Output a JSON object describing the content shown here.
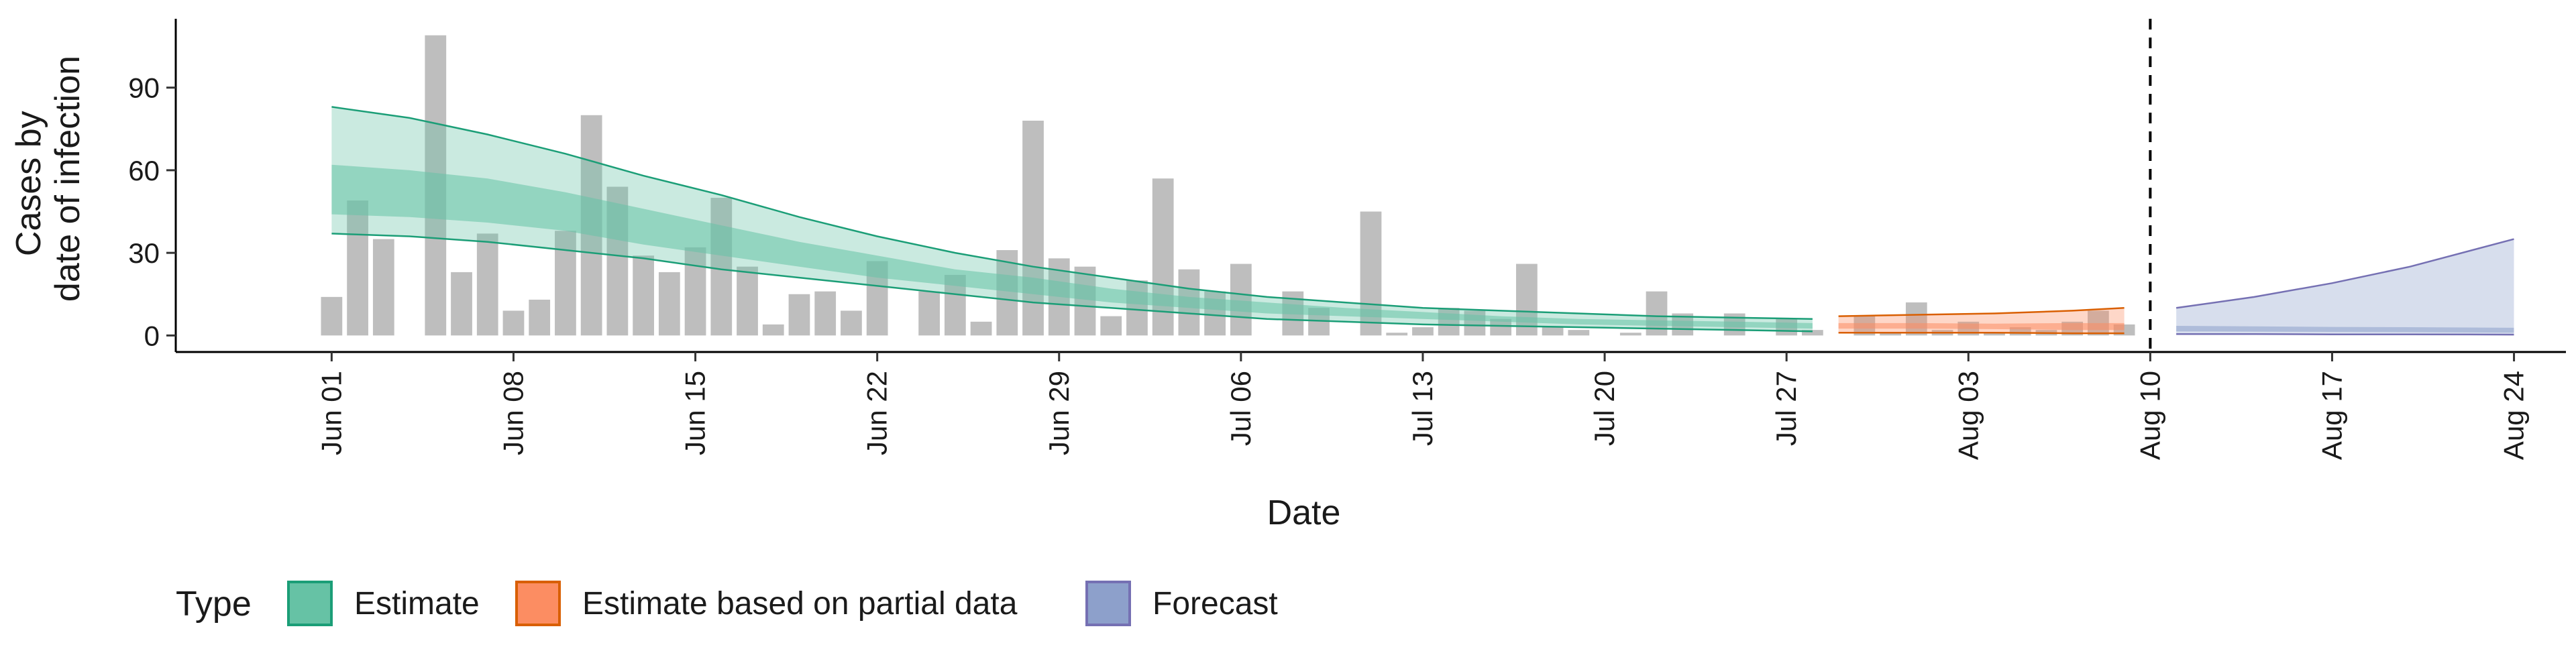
{
  "chart_data": {
    "type": "bar",
    "title": "",
    "xlabel": "Date",
    "ylabel": [
      "Cases by",
      "date of infection"
    ],
    "ylim": [
      -6,
      115
    ],
    "y_ticks": [
      0,
      30,
      60,
      90
    ],
    "x_ticks": [
      {
        "date": "2020-06-01",
        "label": "Jun 01"
      },
      {
        "date": "2020-06-08",
        "label": "Jun 08"
      },
      {
        "date": "2020-06-15",
        "label": "Jun 15"
      },
      {
        "date": "2020-06-22",
        "label": "Jun 22"
      },
      {
        "date": "2020-06-29",
        "label": "Jun 29"
      },
      {
        "date": "2020-07-06",
        "label": "Jul 06"
      },
      {
        "date": "2020-07-13",
        "label": "Jul 13"
      },
      {
        "date": "2020-07-20",
        "label": "Jul 20"
      },
      {
        "date": "2020-07-27",
        "label": "Jul 27"
      },
      {
        "date": "2020-08-03",
        "label": "Aug 03"
      },
      {
        "date": "2020-08-10",
        "label": "Aug 10"
      },
      {
        "date": "2020-08-17",
        "label": "Aug 17"
      },
      {
        "date": "2020-08-24",
        "label": "Aug 24"
      }
    ],
    "x_range": [
      "2020-05-26",
      "2020-08-26"
    ],
    "vline_date": "2020-08-10",
    "grid": false,
    "legend_position": "bottom-left",
    "observed_start": "2020-06-01",
    "observed_cases": [
      14,
      49,
      35,
      0,
      109,
      23,
      37,
      9,
      13,
      38,
      80,
      54,
      29,
      23,
      32,
      50,
      25,
      4,
      15,
      16,
      9,
      27,
      0,
      16,
      22,
      5,
      31,
      78,
      28,
      25,
      7,
      20,
      57,
      24,
      16,
      26,
      0,
      16,
      10,
      0,
      45,
      1,
      3,
      10,
      9,
      6,
      26,
      3,
      2,
      0,
      1,
      16,
      8,
      0,
      8,
      0,
      6,
      2,
      0,
      7,
      1,
      12,
      2,
      5,
      1,
      3,
      2,
      5,
      9,
      4
    ],
    "bar_color": "#bebebe",
    "series": [
      {
        "name": "Estimate",
        "color": "#1b9e77",
        "fill": "#66c2a5",
        "x": [
          "2020-06-01",
          "2020-06-04",
          "2020-06-07",
          "2020-06-10",
          "2020-06-13",
          "2020-06-16",
          "2020-06-19",
          "2020-06-22",
          "2020-06-25",
          "2020-06-28",
          "2020-07-01",
          "2020-07-04",
          "2020-07-07",
          "2020-07-10",
          "2020-07-13",
          "2020-07-16",
          "2020-07-19",
          "2020-07-22",
          "2020-07-25",
          "2020-07-28"
        ],
        "median": [
          52,
          50,
          48,
          44,
          39,
          34,
          29,
          25,
          21,
          18,
          15,
          12,
          10,
          8.5,
          7,
          6,
          5,
          4.5,
          4,
          3.5
        ],
        "lower_50": [
          44,
          43,
          41,
          38,
          33,
          29,
          25,
          21,
          18,
          15,
          12,
          10,
          8,
          7,
          6,
          5,
          4,
          3.5,
          3,
          2.5
        ],
        "upper_50": [
          62,
          60,
          57,
          52,
          46,
          40,
          34,
          29,
          24,
          21,
          17,
          14,
          12,
          10,
          8.5,
          7,
          6,
          5.5,
          5,
          4.5
        ],
        "lower_90": [
          37,
          36,
          34,
          31,
          28,
          24,
          21,
          18,
          15,
          12,
          10,
          8,
          6,
          5,
          4,
          3.5,
          3,
          2.5,
          2,
          1.5
        ],
        "upper_90": [
          83,
          79,
          73,
          66,
          58,
          51,
          43,
          36,
          30,
          25,
          21,
          17,
          14,
          12,
          10,
          9,
          8,
          7,
          6.5,
          6
        ]
      },
      {
        "name": "Estimate based on partial data",
        "color": "#d95f02",
        "fill": "#fc8d62",
        "x": [
          "2020-07-29",
          "2020-08-01",
          "2020-08-04",
          "2020-08-07",
          "2020-08-09"
        ],
        "median": [
          3.5,
          3.5,
          3.2,
          3,
          3
        ],
        "lower_50": [
          2.5,
          2.5,
          2.3,
          2,
          2
        ],
        "upper_50": [
          4.5,
          4.5,
          4.3,
          4.5,
          4.5
        ],
        "lower_90": [
          1,
          1,
          1,
          0.8,
          0.8
        ],
        "upper_90": [
          7,
          7.5,
          8,
          9,
          10
        ]
      },
      {
        "name": "Forecast",
        "color": "#7570b3",
        "fill": "#8da0cb",
        "x": [
          "2020-08-11",
          "2020-08-14",
          "2020-08-17",
          "2020-08-20",
          "2020-08-24"
        ],
        "median": [
          2.5,
          2.3,
          2.1,
          2,
          1.8
        ],
        "lower_50": [
          1.5,
          1.4,
          1.3,
          1.2,
          1
        ],
        "upper_50": [
          3.5,
          3.3,
          3.1,
          3,
          2.8
        ],
        "lower_90": [
          0.5,
          0.5,
          0.4,
          0.4,
          0.3
        ],
        "upper_90": [
          10,
          14,
          19,
          25,
          35
        ]
      }
    ],
    "legend": {
      "title": "Type",
      "items": [
        {
          "label": "Estimate",
          "fill": "#66c2a5",
          "border": "#1b9e77"
        },
        {
          "label": "Estimate based on partial data",
          "fill": "#fc8d62",
          "border": "#d95f02"
        },
        {
          "label": "Forecast",
          "fill": "#8da0cb",
          "border": "#7570b3"
        }
      ]
    }
  }
}
